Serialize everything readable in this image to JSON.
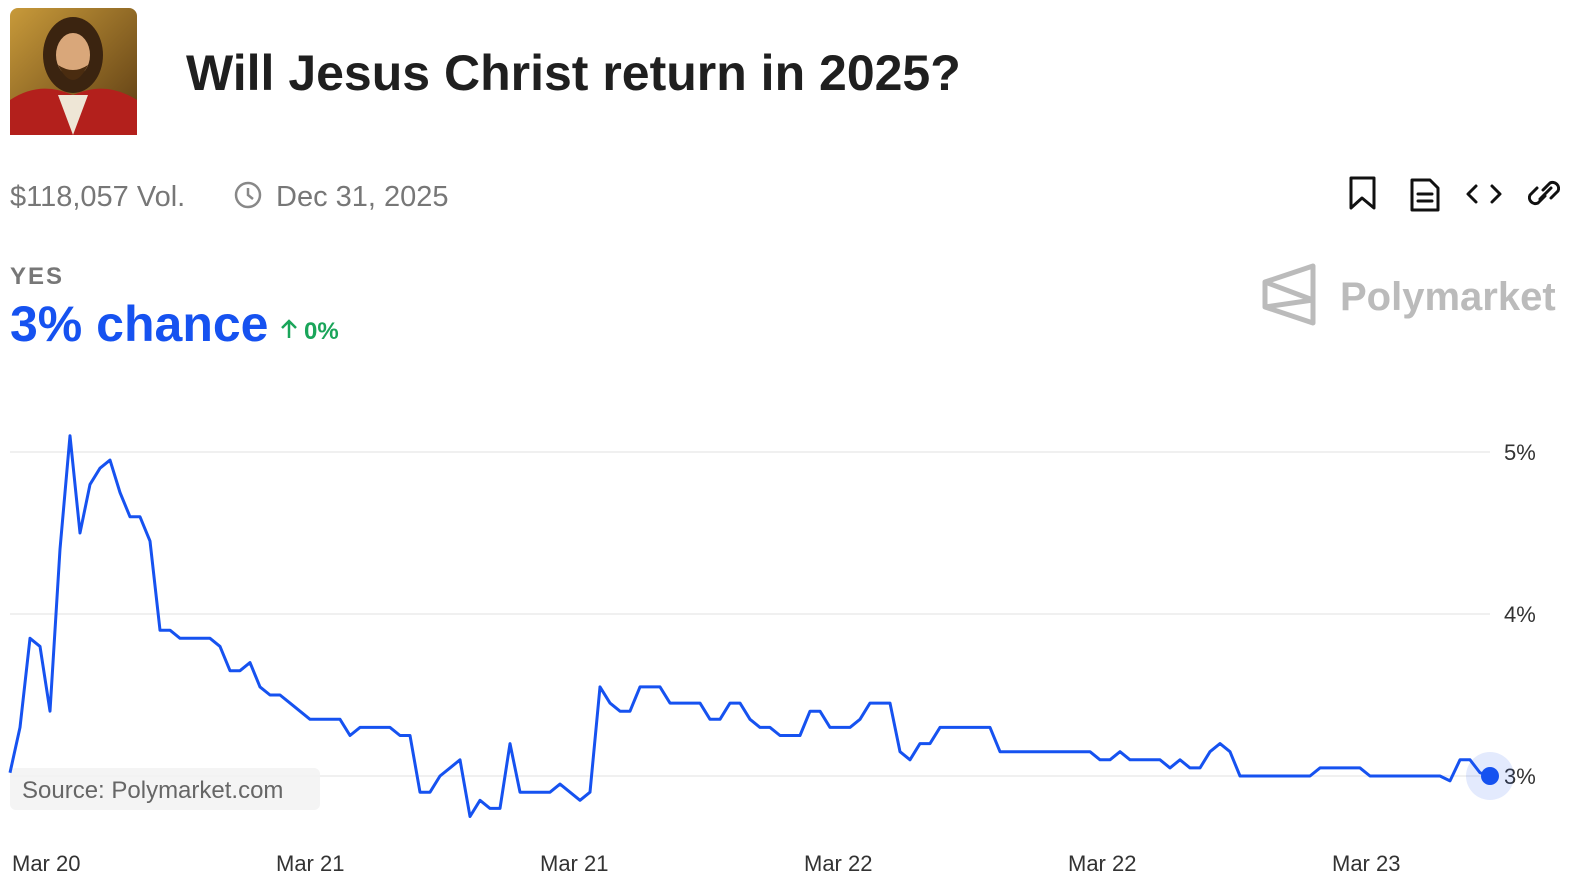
{
  "header": {
    "title": "Will Jesus Christ return in 2025?",
    "volume": "$118,057 Vol.",
    "end_date": "Dec 31, 2025",
    "outcome": "YES",
    "chance": "3% chance",
    "change": "0%",
    "brand": "Polymarket"
  },
  "chart_data": {
    "type": "line",
    "source": "Source: Polymarket.com",
    "series": [
      {
        "name": "YES",
        "color": "#1652f0",
        "values": [
          3.02,
          3.3,
          3.85,
          3.8,
          3.4,
          4.4,
          5.1,
          4.5,
          4.8,
          4.9,
          4.95,
          4.75,
          4.6,
          4.6,
          4.45,
          3.9,
          3.9,
          3.85,
          3.85,
          3.85,
          3.85,
          3.8,
          3.65,
          3.65,
          3.7,
          3.55,
          3.5,
          3.5,
          3.45,
          3.4,
          3.35,
          3.35,
          3.35,
          3.35,
          3.25,
          3.3,
          3.3,
          3.3,
          3.3,
          3.25,
          3.25,
          2.9,
          2.9,
          3.0,
          3.05,
          3.1,
          2.75,
          2.85,
          2.8,
          2.8,
          3.2,
          2.9,
          2.9,
          2.9,
          2.9,
          2.95,
          2.9,
          2.85,
          2.9,
          3.55,
          3.45,
          3.4,
          3.4,
          3.55,
          3.55,
          3.55,
          3.45,
          3.45,
          3.45,
          3.45,
          3.35,
          3.35,
          3.45,
          3.45,
          3.35,
          3.3,
          3.3,
          3.25,
          3.25,
          3.25,
          3.4,
          3.4,
          3.3,
          3.3,
          3.3,
          3.35,
          3.45,
          3.45,
          3.45,
          3.15,
          3.1,
          3.2,
          3.2,
          3.3,
          3.3,
          3.3,
          3.3,
          3.3,
          3.3,
          3.15,
          3.15,
          3.15,
          3.15,
          3.15,
          3.15,
          3.15,
          3.15,
          3.15,
          3.15,
          3.1,
          3.1,
          3.15,
          3.1,
          3.1,
          3.1,
          3.1,
          3.05,
          3.1,
          3.05,
          3.05,
          3.15,
          3.2,
          3.15,
          3.0,
          3.0,
          3.0,
          3.0,
          3.0,
          3.0,
          3.0,
          3.0,
          3.05,
          3.05,
          3.05,
          3.05,
          3.05,
          3.0,
          3.0,
          3.0,
          3.0,
          3.0,
          3.0,
          3.0,
          3.0,
          2.97,
          3.1,
          3.1,
          3.02,
          3.0
        ]
      }
    ],
    "xlim": [
      0,
      148
    ],
    "xticks": [
      {
        "value": 0,
        "label": "Mar 20"
      },
      {
        "value": 26.4,
        "label": "Mar 21"
      },
      {
        "value": 52.8,
        "label": "Mar 21"
      },
      {
        "value": 79.2,
        "label": "Mar 22"
      },
      {
        "value": 105.6,
        "label": "Mar 22"
      },
      {
        "value": 132,
        "label": "Mar 23"
      }
    ],
    "ylim": [
      2.6,
      5.45
    ],
    "yticks": [
      {
        "value": 3,
        "label": "3%"
      },
      {
        "value": 4,
        "label": "4%"
      },
      {
        "value": 5,
        "label": "5%"
      }
    ],
    "grid": true
  }
}
